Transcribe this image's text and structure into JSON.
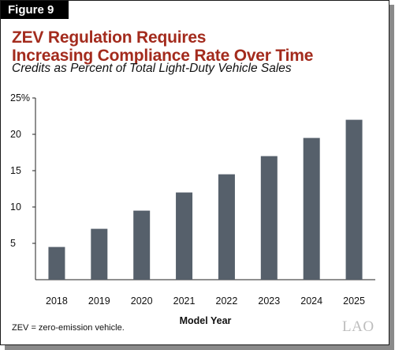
{
  "figure_label": "Figure 9",
  "title": "ZEV Regulation Requires\nIncreasing Compliance Rate Over Time",
  "subtitle": "Credits as Percent of Total Light-Duty Vehicle Sales",
  "footnote": "ZEV = zero-emission vehicle.",
  "logo_text": "LAO",
  "colors": {
    "bar": "#56606b",
    "title": "#a32b1d",
    "axis": "#222222"
  },
  "chart_data": {
    "type": "bar",
    "categories": [
      "2018",
      "2019",
      "2020",
      "2021",
      "2022",
      "2023",
      "2024",
      "2025"
    ],
    "values": [
      4.5,
      7,
      9.5,
      12,
      14.5,
      17,
      19.5,
      22
    ],
    "xlabel": "Model Year",
    "ylabel": "",
    "ylim": [
      0,
      25
    ],
    "y_ticks": [
      5,
      10,
      15,
      20,
      25
    ],
    "y_tick_labels": [
      "5",
      "10",
      "15",
      "20",
      "25%"
    ],
    "grid": false
  }
}
